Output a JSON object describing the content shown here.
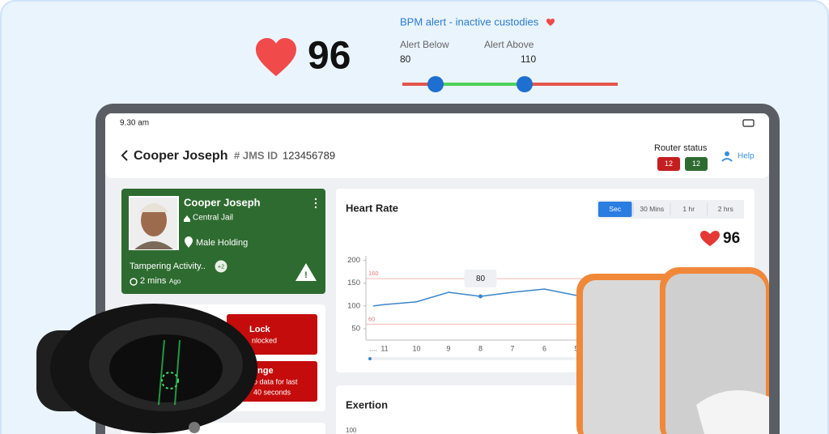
{
  "alert": {
    "title": "BPM alert - inactive custodies",
    "bpm": 96,
    "below_label": "Alert Below",
    "below": 80,
    "above_label": "Alert Above",
    "above": 110
  },
  "status_bar": {
    "time": "9.30 am"
  },
  "header": {
    "name": "Cooper Joseph",
    "id_label": "# JMS ID",
    "id": "123456789",
    "router_label": "Router status",
    "router": [
      12,
      12
    ],
    "help": "Help"
  },
  "card": {
    "name": "Cooper Joseph",
    "location": "Central Jail",
    "holding": "Male Holding",
    "activity": "Tampering Activity..",
    "badge": "+2",
    "time": "2 mins",
    "ago": "Ago"
  },
  "actions": [
    {
      "title": "Lock",
      "lines": [
        "nlocked"
      ]
    },
    {
      "title": "nge",
      "lines": [
        "o data for last",
        "40 seconds"
      ]
    }
  ],
  "chart_data": {
    "type": "line",
    "title": "Heart Rate",
    "ranges": [
      "Sec",
      "30 Mins",
      "1 hr",
      "2 hrs"
    ],
    "current": 96,
    "categories": [
      "....",
      "11",
      "10",
      "9",
      "8",
      "7",
      "6",
      "5"
    ],
    "series": [
      {
        "name": "Heart Rate",
        "color": "#3a86c8",
        "values": [
          100,
          103,
          109,
          130,
          121,
          130,
          137,
          123
        ]
      }
    ],
    "thresholds": [
      160,
      60
    ],
    "annotations": [
      {
        "text": "80"
      }
    ],
    "ylim": [
      25,
      210
    ],
    "yticks": [
      50,
      100,
      150,
      200
    ]
  },
  "exertion": {
    "title": "Exertion",
    "ytick": 100
  }
}
